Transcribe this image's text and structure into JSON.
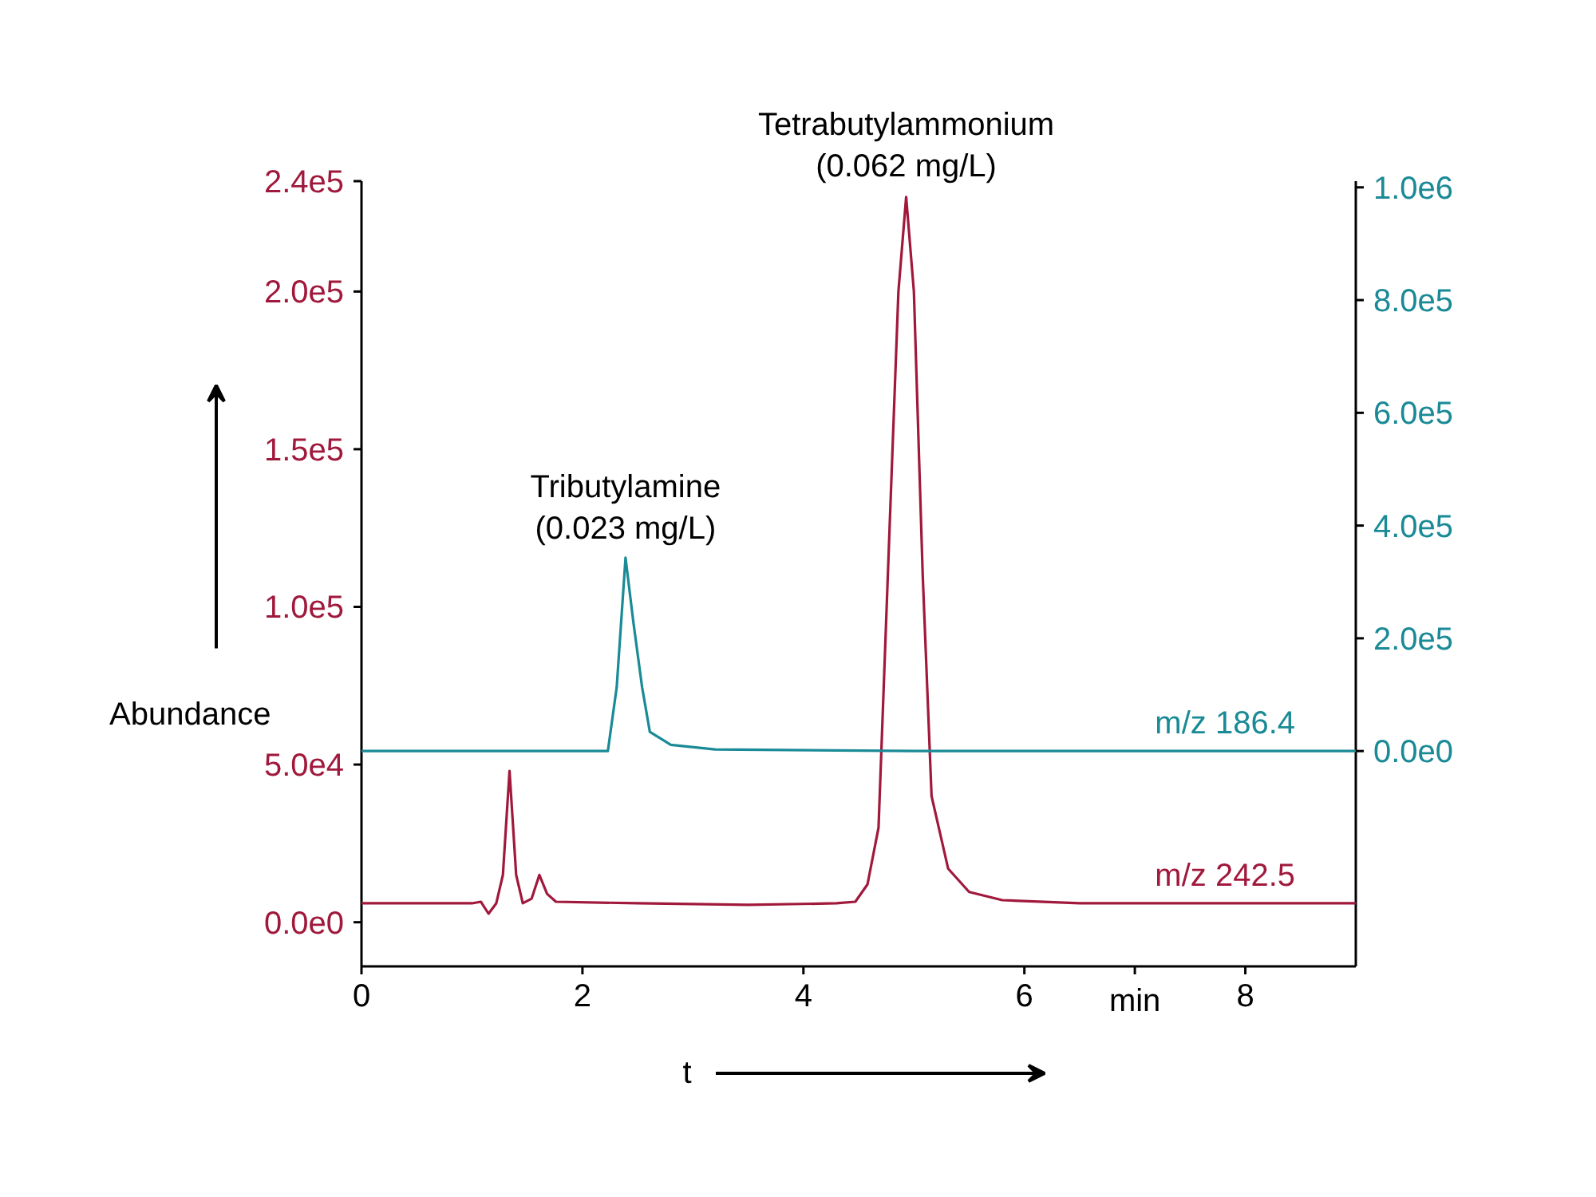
{
  "chart_data": {
    "type": "line",
    "xlabel": "t",
    "ylabel": "Abundance",
    "x": [
      0,
      0.5,
      1.0,
      1.08,
      1.15,
      1.22,
      1.28,
      1.34,
      1.4,
      1.46,
      1.54,
      1.61,
      1.68,
      1.76,
      2.5,
      3.5,
      4.3,
      4.47,
      4.58,
      4.68,
      4.78,
      4.86,
      4.93,
      5.0,
      5.08,
      5.16,
      5.31,
      5.5,
      5.8,
      6.5,
      7.5,
      9.0
    ],
    "series": [
      {
        "name": "m/z 242.5",
        "color": "#a0193c",
        "axis": "y",
        "values": [
          6000,
          6000,
          6000,
          6500,
          2700,
          6000,
          15000,
          48000,
          15000,
          6000,
          7500,
          15000,
          9000,
          6500,
          6000,
          5500,
          6000,
          6500,
          12000,
          30000,
          125000,
          200000,
          230000,
          200000,
          110000,
          40000,
          17000,
          9600,
          7000,
          6000,
          6000,
          6000
        ]
      },
      {
        "name": "m/z 186.4",
        "color": "#1a8a96",
        "axis": "y2",
        "x": [
          0,
          1.0,
          2.0,
          2.23,
          2.31,
          2.39,
          2.46,
          2.54,
          2.61,
          2.8,
          3.2,
          5.0,
          7.0,
          9.0
        ],
        "values": [
          0,
          0,
          0,
          0,
          113000,
          343000,
          230000,
          113000,
          34000,
          11000,
          3000,
          0,
          0,
          0
        ]
      }
    ],
    "xlim": [
      0,
      9.0
    ],
    "xticks": [
      0,
      2,
      4,
      6,
      {
        "value": 7,
        "label": "min"
      },
      8
    ],
    "ylim": [
      -14000,
      235000
    ],
    "yticks": [
      {
        "value": 0,
        "label": "0.0e0"
      },
      {
        "value": 50000,
        "label": "5.0e4"
      },
      {
        "value": 100000,
        "label": "1.0e5"
      },
      {
        "value": 150000,
        "label": "1.5e5"
      },
      {
        "value": 200000,
        "label": "2.0e5"
      },
      {
        "value": 235000,
        "label": "2.4e5"
      }
    ],
    "y2lim": [
      -382000,
      1011000
    ],
    "y2ticks": [
      {
        "value": 0,
        "label": "0.0e0"
      },
      {
        "value": 200000,
        "label": "2.0e5"
      },
      {
        "value": 400000,
        "label": "4.0e5"
      },
      {
        "value": 600000,
        "label": "6.0e5"
      },
      {
        "value": 800000,
        "label": "8.0e5"
      },
      {
        "value": 1000000,
        "label": "1.0e6"
      }
    ],
    "annotations": [
      {
        "text": "Tributylamine\n(0.023 mg/L)",
        "x": 2.39,
        "y": 115000
      },
      {
        "text": "Tetrabutylammonium\n(0.062 mg/L)",
        "x": 4.93,
        "y": 230000
      }
    ],
    "grid": false,
    "legend": false,
    "marker": "none",
    "line_style": "solid"
  }
}
